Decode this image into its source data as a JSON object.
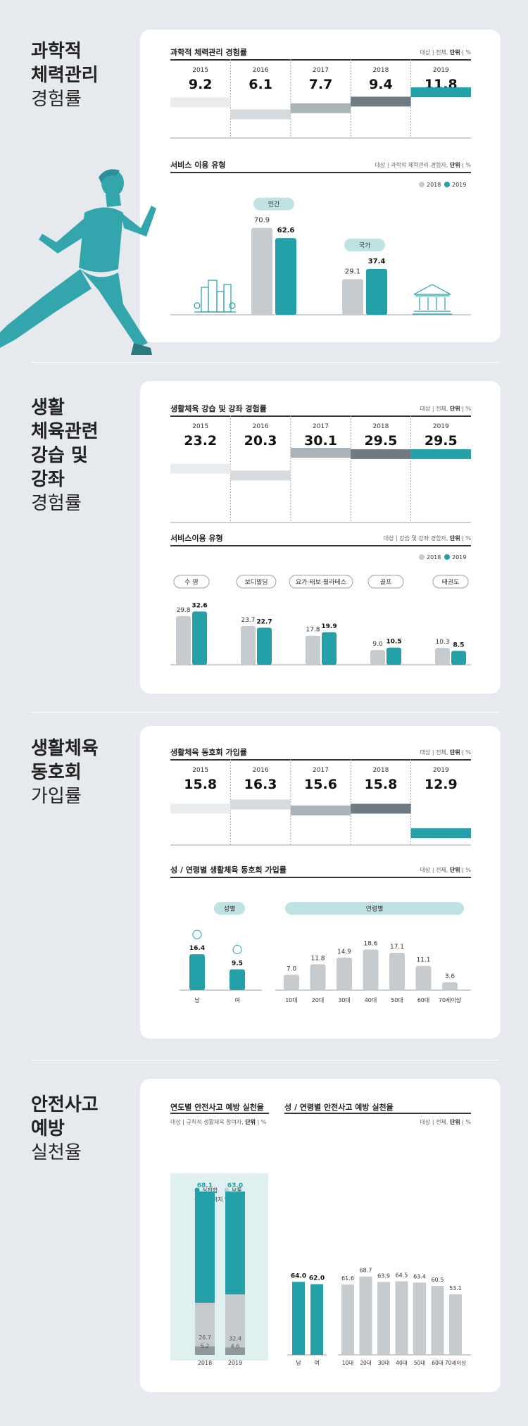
{
  "colors": {
    "teal": "#23a0a8",
    "light": "#c6cbcf",
    "y2015": "#e8ecef",
    "y2016": "#d5dbde",
    "y2017": "#aab3b8",
    "y2018": "#6e7b82",
    "y2019": "#23a0a8",
    "pill": "#bfe2e5"
  },
  "s1": {
    "title": [
      "과학적",
      "체력관리"
    ],
    "subtitle": "경험률",
    "chart1": {
      "title": "과학적 체력관리 경험률",
      "note_pre": "대상",
      "note_mid": " | 전체, ",
      "note_b": "단위",
      "note_post": " | %"
    },
    "chart2": {
      "title": "서비스 이용 유형",
      "note_pre": "대상",
      "note_mid": " | 과학적 체력관리 경험자, ",
      "note_b": "단위",
      "note_post": " | %",
      "legend": [
        "2018",
        "2019"
      ],
      "groups": [
        "민간",
        "국가"
      ]
    }
  },
  "s2": {
    "title": [
      "생활",
      "체육관련",
      "강습 및",
      "강좌"
    ],
    "subtitle": "경험률",
    "chart1": {
      "title": "생활체육 강습 및 강좌 경험률",
      "note_pre": "대상",
      "note_mid": " | 전체, ",
      "note_b": "단위",
      "note_post": " | %"
    },
    "chart2": {
      "title": "서비스이용 유형",
      "note_pre": "대상",
      "note_mid": " | 강습 및 강좌 경험자, ",
      "note_b": "단위",
      "note_post": " | %",
      "legend": [
        "2018",
        "2019"
      ]
    }
  },
  "s3": {
    "title": [
      "생활체육",
      "동호회"
    ],
    "subtitle": "가입률",
    "chart1": {
      "title": "생활체육 동호회 가입률",
      "note_pre": "대상",
      "note_mid": " | 전체, ",
      "note_b": "단위",
      "note_post": " | %"
    },
    "chart2": {
      "title": "성 / 연령별 생활체육 동호회 가입률",
      "note_pre": "대상",
      "note_mid": " | 전체, ",
      "note_b": "단위",
      "note_post": " | %",
      "groups": [
        "성별",
        "연령별"
      ]
    }
  },
  "s4": {
    "title": [
      "안전사고",
      "예방"
    ],
    "subtitle": "실천율",
    "chart1": {
      "title": "연도별 안전사고 예방 실천율",
      "note_pre": "대상",
      "note_mid": " | 규칙적 생활체육 참여자, ",
      "note_b": "단위",
      "note_post": " | %",
      "legend": [
        "실천함",
        "보통",
        "실천하지 않음"
      ]
    },
    "chart2": {
      "title": "성 / 연령별 안전사고 예방 실천율",
      "note_pre": "대상",
      "note_mid": " | 전체, ",
      "note_b": "단위",
      "note_post": " | %"
    }
  },
  "chart_data": [
    {
      "id": "s1c1",
      "type": "bar",
      "title": "과학적 체력관리 경험률",
      "categories": [
        "2015",
        "2016",
        "2017",
        "2018",
        "2019"
      ],
      "values": [
        9.2,
        6.1,
        7.7,
        9.4,
        11.8
      ],
      "ylim": [
        0,
        12
      ]
    },
    {
      "id": "s1c2",
      "type": "bar",
      "title": "서비스 이용 유형",
      "categories": [
        "민간",
        "국가"
      ],
      "series": [
        {
          "name": "2018",
          "values": [
            70.9,
            29.1
          ]
        },
        {
          "name": "2019",
          "values": [
            62.6,
            37.4
          ]
        }
      ],
      "ylim": [
        0,
        80
      ]
    },
    {
      "id": "s2c1",
      "type": "bar",
      "title": "생활체육 강습 및 강좌 경험률",
      "categories": [
        "2015",
        "2016",
        "2017",
        "2018",
        "2019"
      ],
      "values": [
        23.2,
        20.3,
        30.1,
        29.5,
        29.5
      ],
      "ylim": [
        0,
        31
      ]
    },
    {
      "id": "s2c2",
      "type": "bar",
      "title": "서비스이용 유형",
      "categories": [
        "수 영",
        "보디빌딩",
        "요가·태보·필라테스",
        "골프",
        "태권도"
      ],
      "series": [
        {
          "name": "2018",
          "values": [
            29.8,
            23.7,
            17.8,
            9.0,
            10.3
          ]
        },
        {
          "name": "2019",
          "values": [
            32.6,
            22.7,
            19.9,
            10.5,
            8.5
          ]
        }
      ],
      "ylim": [
        0,
        35
      ]
    },
    {
      "id": "s3c1",
      "type": "bar",
      "title": "생활체육 동호회 가입률",
      "categories": [
        "2015",
        "2016",
        "2017",
        "2018",
        "2019"
      ],
      "values": [
        15.8,
        16.3,
        15.6,
        15.8,
        12.9
      ],
      "ylim": [
        11.5,
        17.5
      ]
    },
    {
      "id": "s3c2",
      "type": "bar",
      "title": "성 / 연령별 생활체육 동호회 가입률",
      "groups": [
        {
          "name": "성별",
          "categories": [
            "남",
            "여"
          ],
          "values": [
            16.4,
            9.5
          ]
        },
        {
          "name": "연령별",
          "categories": [
            "10대",
            "20대",
            "30대",
            "40대",
            "50대",
            "60대",
            "70세이상"
          ],
          "values": [
            7.0,
            11.8,
            14.9,
            18.6,
            17.1,
            11.1,
            3.6
          ]
        }
      ],
      "ylim": [
        0,
        20
      ]
    },
    {
      "id": "s4c1",
      "type": "bar",
      "stacked": true,
      "title": "연도별 안전사고 예방 실천율",
      "categories": [
        "2018",
        "2019"
      ],
      "series": [
        {
          "name": "실천함",
          "values": [
            68.1,
            63.0
          ]
        },
        {
          "name": "보통",
          "values": [
            26.7,
            32.4
          ]
        },
        {
          "name": "실천하지 않음",
          "values": [
            5.2,
            4.6
          ]
        }
      ],
      "ylim": [
        0,
        100
      ]
    },
    {
      "id": "s4c2",
      "type": "bar",
      "title": "성 / 연령별 안전사고 예방 실천율",
      "groups": [
        {
          "name": "성별",
          "categories": [
            "남",
            "여"
          ],
          "values": [
            64.0,
            62.0
          ]
        },
        {
          "name": "연령별",
          "categories": [
            "10대",
            "20대",
            "30대",
            "40대",
            "50대",
            "60대",
            "70세이상"
          ],
          "values": [
            61.6,
            68.7,
            63.9,
            64.5,
            63.4,
            60.5,
            53.1
          ]
        }
      ],
      "ylim": [
        0,
        80
      ]
    }
  ]
}
